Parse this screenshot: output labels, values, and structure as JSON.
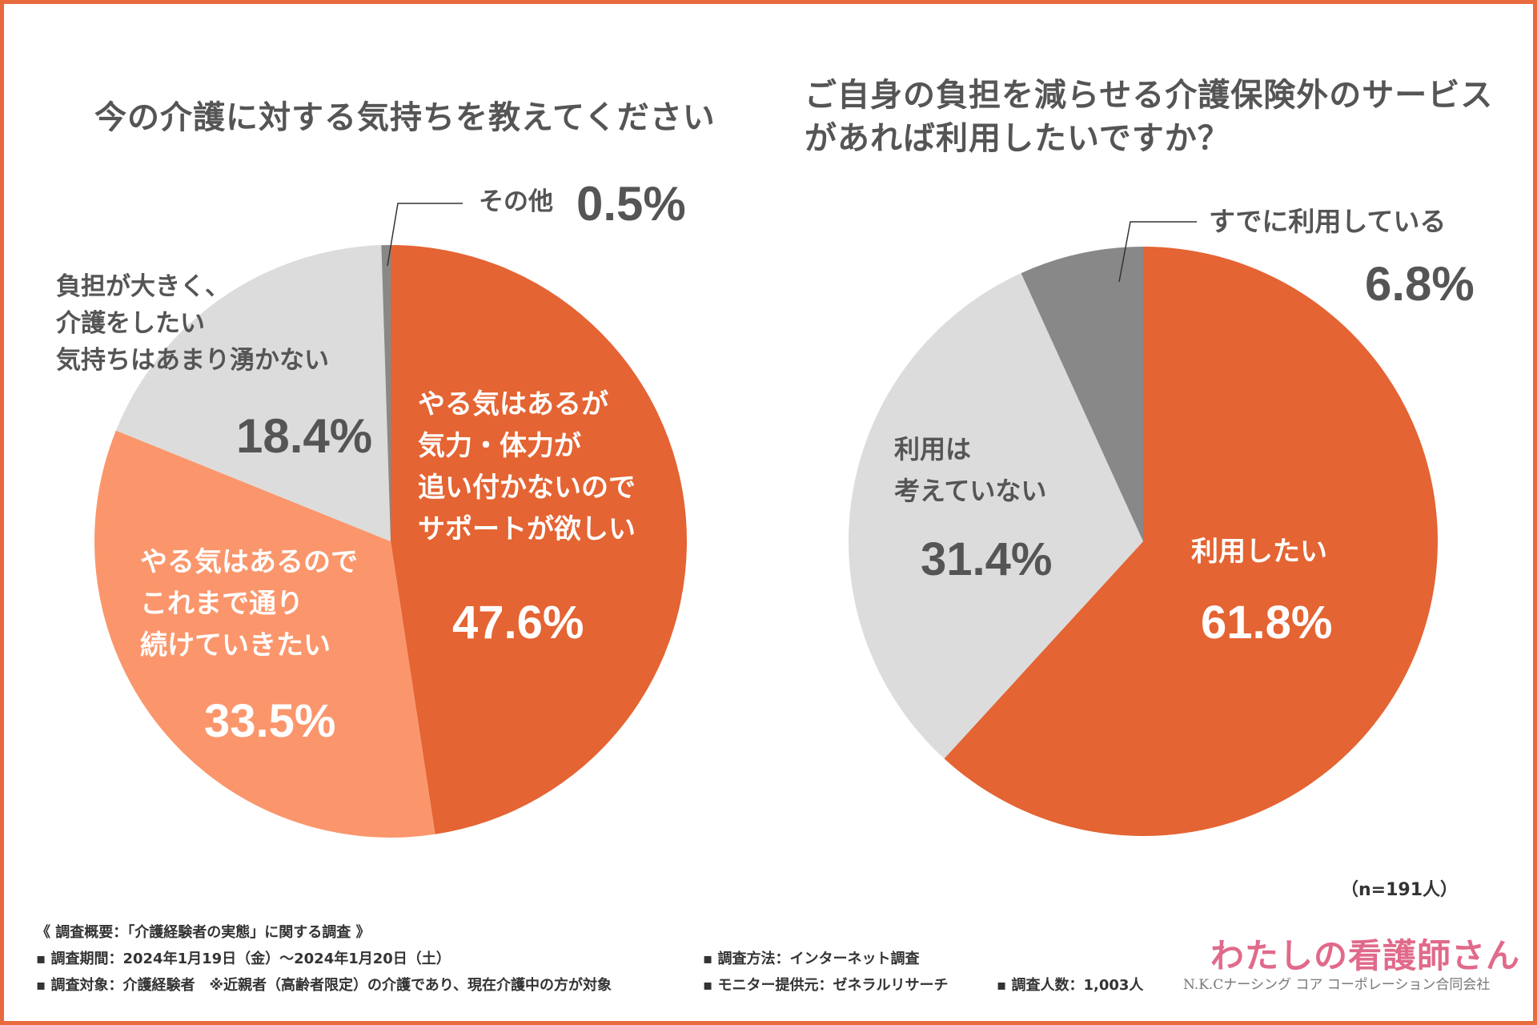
{
  "chart_data": [
    {
      "type": "pie",
      "title": "今の介護に対する気持ちを教えてください",
      "slices": [
        {
          "label": "やる気はあるが\n気力・体力が\n追い付かないので\nサポートが欲しい",
          "value": 47.6,
          "display": "47.6%",
          "color": "#e46433"
        },
        {
          "label": "やる気はあるので\nこれまで通り\n続けていきたい",
          "value": 33.5,
          "display": "33.5%",
          "color": "#fb966c"
        },
        {
          "label": "負担が大きく、\n介護をしたい\n気持ちはあまり湧かない",
          "value": 18.4,
          "display": "18.4%",
          "color": "#dcdcdc"
        },
        {
          "label": "その他",
          "value": 0.5,
          "display": "0.5%",
          "color": "#888888"
        }
      ]
    },
    {
      "type": "pie",
      "title": "ご自身の負担を減らせる介護保険外のサービスがあれば利用したいですか？",
      "slices": [
        {
          "label": "利用したい",
          "value": 61.8,
          "display": "61.8%",
          "color": "#e46433"
        },
        {
          "label": "利用は\n考えていない",
          "value": 31.4,
          "display": "31.4%",
          "color": "#dcdcdc"
        },
        {
          "label": "すでに利用している",
          "value": 6.8,
          "display": "6.8%",
          "color": "#888888"
        }
      ]
    }
  ],
  "sample_size": "（n=191人）",
  "footer": {
    "heading": "《 調査概要：「介護経験者の実態」に関する調査 》",
    "period": "▪ 調査期間：2024年1月19日（金）〜2024年1月20日（土）",
    "target": "▪ 調査対象：介護経験者　※近親者（高齢者限定）の介護であり、現在介護中の方が対象",
    "method": "▪ 調査方法：インターネット調査",
    "provider": "▪ モニター提供元：ゼネラルリサーチ",
    "count": "▪ 調査人数：1,003人"
  },
  "logo": {
    "main": "わたしの看護師さん",
    "sub": "N.K.Cナーシング コア コーポレーション合同会社"
  }
}
